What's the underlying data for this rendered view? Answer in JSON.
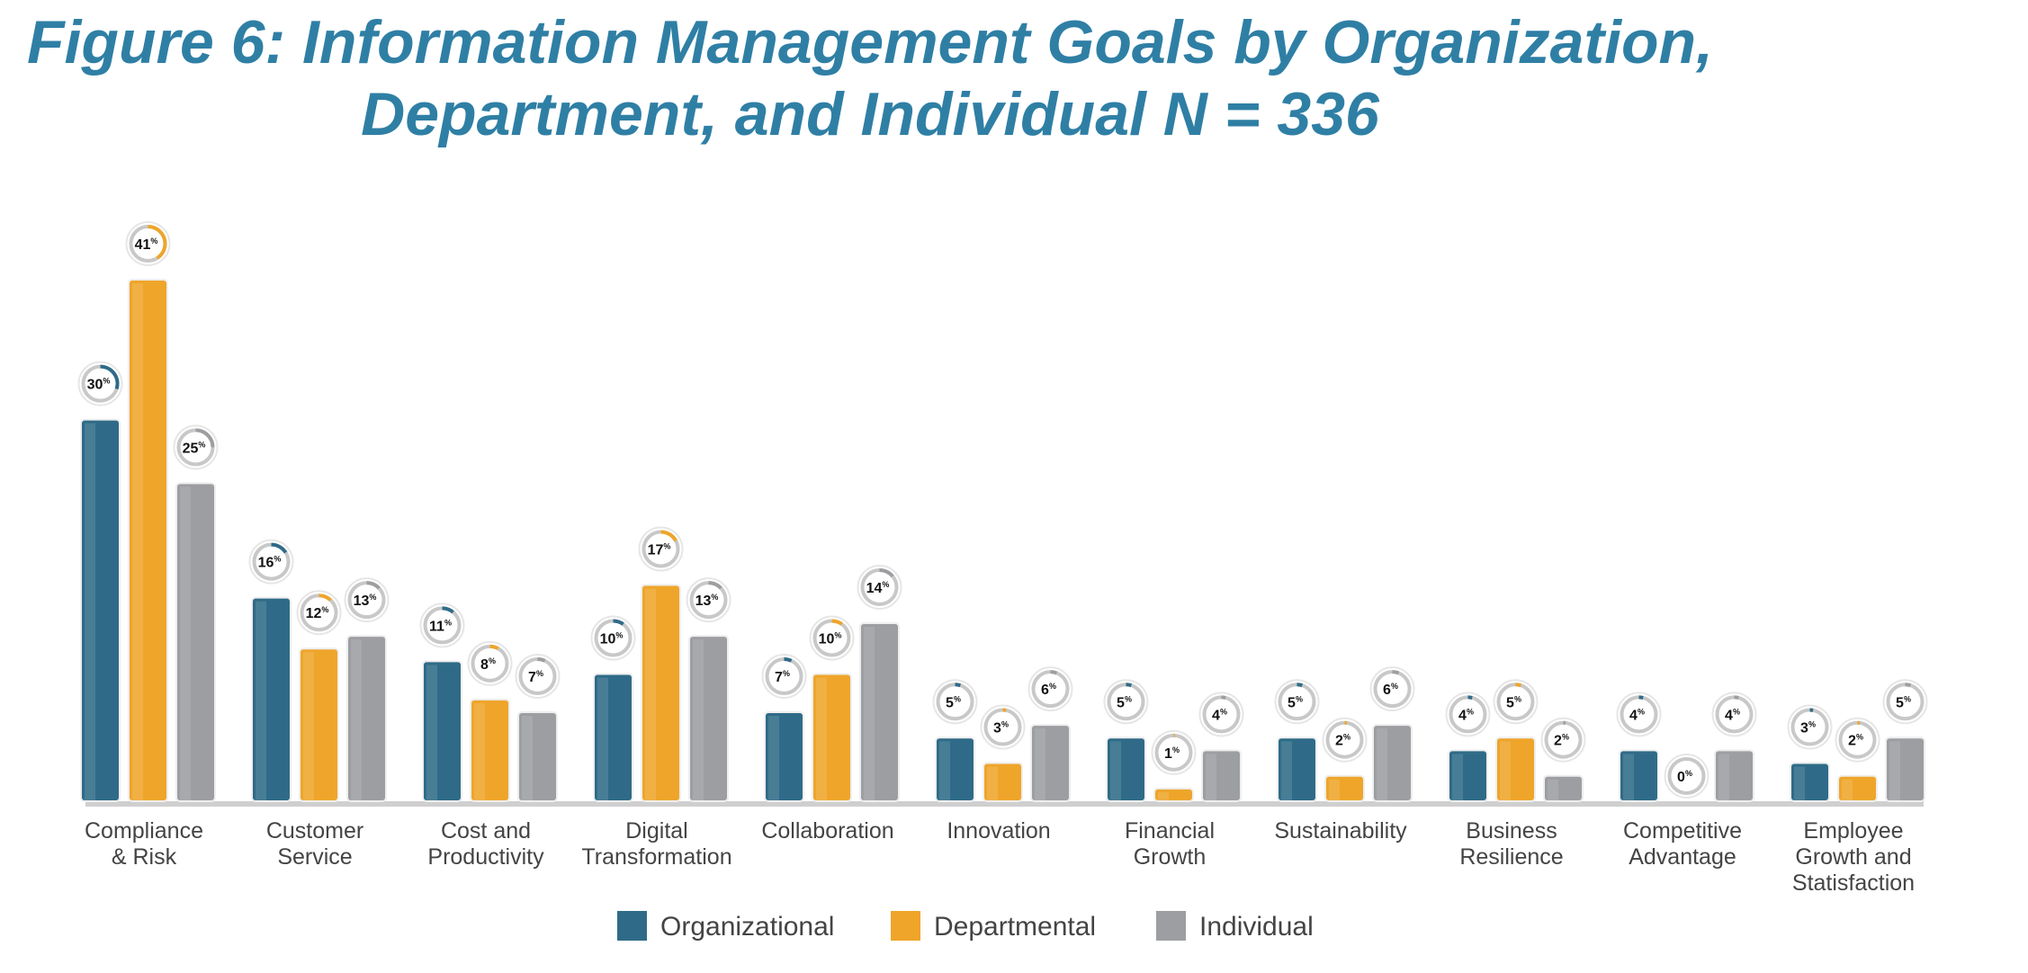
{
  "chart_data": {
    "type": "bar",
    "title": [
      "Figure 6: Information Management Goals by Organization,",
      "Department, and Individual N = 336"
    ],
    "xlabel": "",
    "ylabel": "",
    "ylim": [
      0,
      41
    ],
    "grid": false,
    "legend_position": "bottom",
    "unit": "%",
    "categories": [
      [
        "Compliance",
        "& Risk"
      ],
      [
        "Customer",
        "Service"
      ],
      [
        "Cost and",
        "Productivity"
      ],
      [
        "Digital",
        "Transformation"
      ],
      [
        "Collaboration"
      ],
      [
        "Innovation"
      ],
      [
        "Financial",
        "Growth"
      ],
      [
        "Sustainability"
      ],
      [
        "Business",
        "Resilience"
      ],
      [
        "Competitive",
        "Advantage"
      ],
      [
        "Employee",
        "Growth and",
        "Statisfaction"
      ]
    ],
    "series": [
      {
        "name": "Organizational",
        "color": "#2f6b88",
        "values": [
          30,
          16,
          11,
          10,
          7,
          5,
          5,
          5,
          4,
          4,
          3
        ]
      },
      {
        "name": "Departmental",
        "color": "#eea52a",
        "values": [
          41,
          12,
          8,
          17,
          10,
          3,
          1,
          2,
          5,
          0,
          2
        ]
      },
      {
        "name": "Individual",
        "color": "#9d9ea1",
        "values": [
          25,
          13,
          7,
          13,
          14,
          6,
          4,
          6,
          2,
          4,
          5
        ]
      }
    ]
  }
}
